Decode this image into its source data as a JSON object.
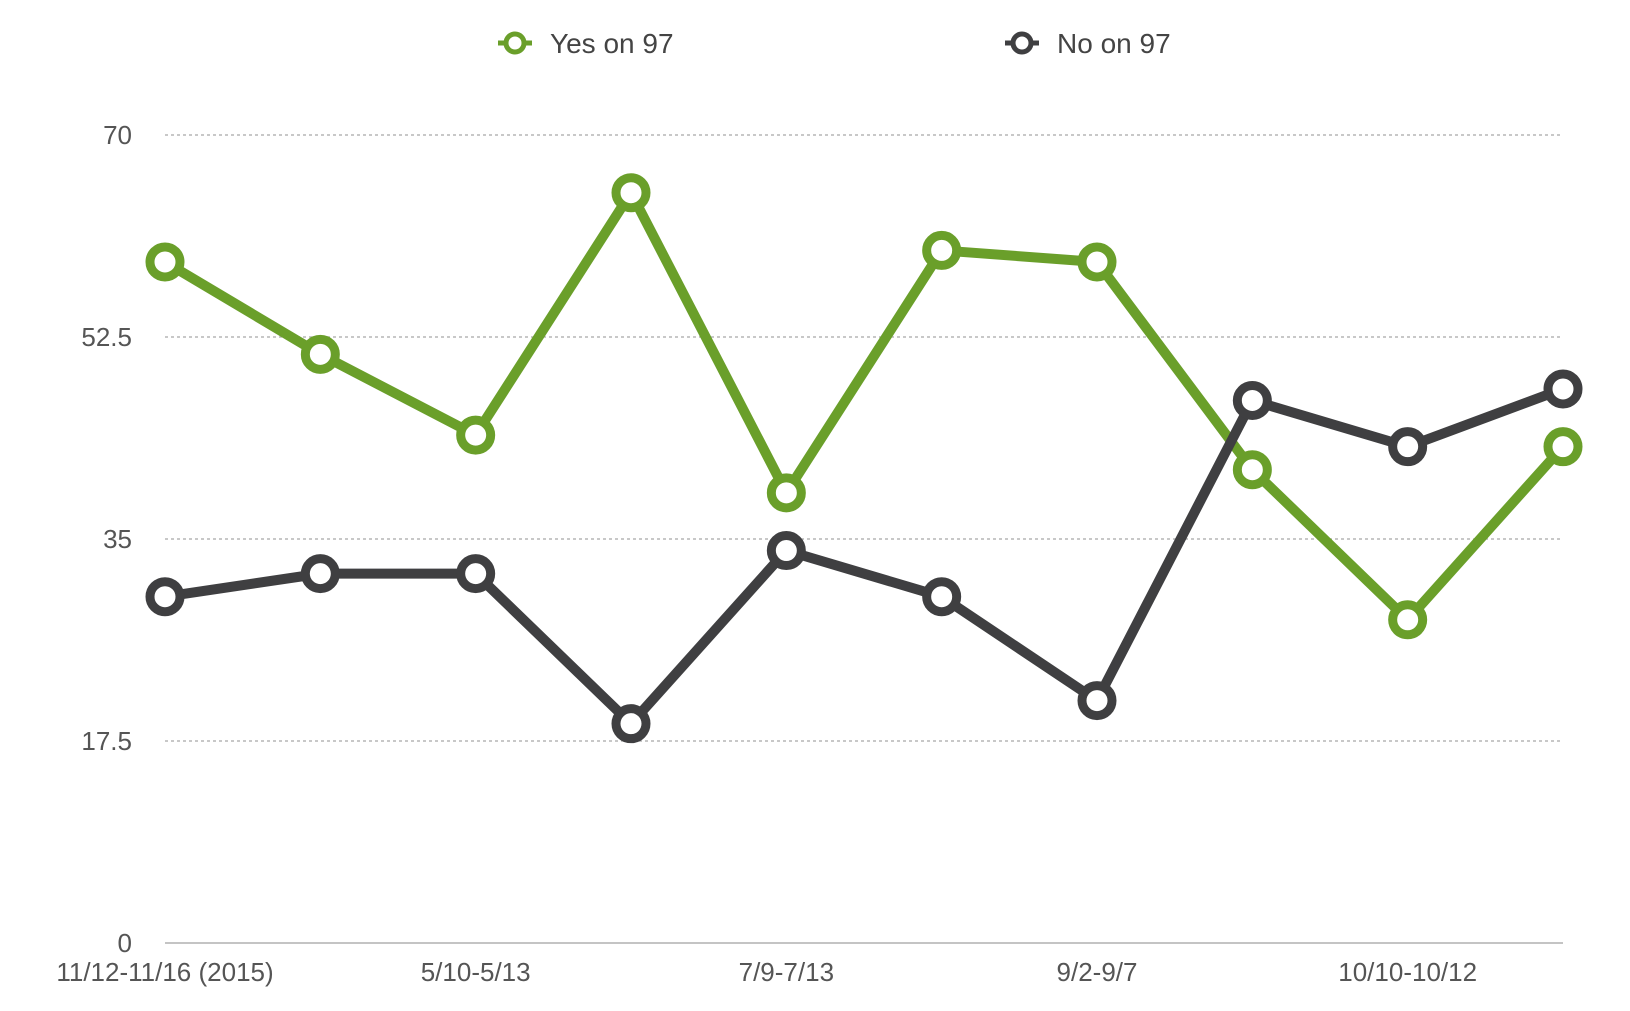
{
  "chart_data": {
    "type": "line",
    "title": "",
    "xlabel": "",
    "ylabel": "",
    "ylim": [
      0,
      70
    ],
    "yticks": [
      "0",
      "17.5",
      "35",
      "52.5",
      "70"
    ],
    "ytick_values": [
      0,
      17.5,
      35,
      52.5,
      70
    ],
    "grid": true,
    "legend_position": "top-center",
    "categories": [
      "11/12-11/16 (2015)",
      "",
      "5/10-5/13",
      "",
      "7/9-7/13",
      "",
      "9/2-9/7",
      "",
      "10/10-10/12",
      ""
    ],
    "series": [
      {
        "name": "Yes on 97",
        "color": "#6a9f2a",
        "values": [
          59,
          51,
          44,
          65,
          39,
          60,
          59,
          41,
          28,
          43
        ]
      },
      {
        "name": "No on 97",
        "color": "#3f3f41",
        "values": [
          30,
          32,
          32,
          19,
          34,
          30,
          21,
          47,
          43,
          48
        ]
      }
    ]
  }
}
